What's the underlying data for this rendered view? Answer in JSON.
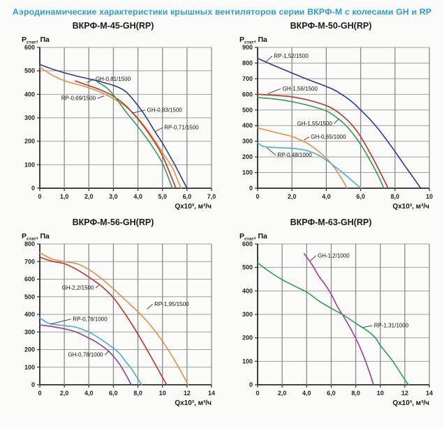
{
  "page_title": "Аэродинамические характеристики крышных вентиляторов серии ВКРФ-М с колесами GH и RP",
  "colors": {
    "title": "#2b9fd3",
    "navy": "#2e3a8c",
    "red": "#c2312a",
    "orange": "#e2913e",
    "green": "#2f9e52",
    "cyan": "#46aed2",
    "purple": "#9c3b95",
    "grid_v": "#8a8a8a",
    "grid_h": "#9e9e9e",
    "axis": "#2a2a2a",
    "tick_text": "#222222",
    "annotation_text": "#111111",
    "leader": "#333333"
  },
  "axis_labels": {
    "y_main": "Р",
    "y_sub": "стат",
    "y_rest": ", Па",
    "x": "Qx10³, м³/ч"
  },
  "chart_data": [
    {
      "type": "line",
      "title": "ВКРФ-М-45-GH(RP)",
      "xlim": [
        0,
        7
      ],
      "ylim": [
        0,
        600
      ],
      "xticks": [
        {
          "v": 0,
          "label": "0"
        },
        {
          "v": 1,
          "label": "1,0"
        },
        {
          "v": 2,
          "label": "2,0"
        },
        {
          "v": 3,
          "label": "3,0"
        },
        {
          "v": 4,
          "label": "4,0"
        },
        {
          "v": 5,
          "label": "5,0"
        },
        {
          "v": 6,
          "label": "6,0"
        },
        {
          "v": 7,
          "label": "7,0"
        }
      ],
      "yticks": [
        0,
        100,
        200,
        300,
        400,
        500,
        600
      ],
      "series": [
        {
          "name": "RP-0,71/1500",
          "color": "navy",
          "points": [
            [
              0,
              527
            ],
            [
              0.5,
              508
            ],
            [
              1,
              492
            ],
            [
              1.5,
              478
            ],
            [
              2,
              466
            ],
            [
              2.5,
              453
            ],
            [
              3,
              438
            ],
            [
              3.5,
              412
            ],
            [
              4,
              352
            ],
            [
              4.35,
              300
            ],
            [
              4.7,
              240
            ],
            [
              5,
              192
            ],
            [
              5.5,
              100
            ],
            [
              6,
              0
            ]
          ]
        },
        {
          "name": "RP-0,69/1500",
          "color": "orange",
          "points": [
            [
              0,
              516
            ],
            [
              0.5,
              482
            ],
            [
              1,
              458
            ],
            [
              1.5,
              443
            ],
            [
              2,
              428
            ],
            [
              2.5,
              408
            ],
            [
              3,
              382
            ],
            [
              3.5,
              348
            ],
            [
              4,
              298
            ],
            [
              4.5,
              232
            ],
            [
              5,
              152
            ],
            [
              5.4,
              88
            ],
            [
              5.75,
              0
            ]
          ]
        },
        {
          "name": "GH-0,81/1500",
          "color": "red",
          "points": [
            [
              1.45,
              457
            ],
            [
              2,
              437
            ],
            [
              2.5,
              418
            ],
            [
              3,
              392
            ],
            [
              3.5,
              352
            ],
            [
              4,
              295
            ],
            [
              4.5,
              225
            ],
            [
              5,
              138
            ],
            [
              5.55,
              0
            ]
          ]
        },
        {
          "name": "GH-0,83/1500",
          "color": "green",
          "points": [
            [
              2.35,
              452
            ],
            [
              2.7,
              430
            ],
            [
              3,
              398
            ],
            [
              3.5,
              327
            ],
            [
              4,
              262
            ],
            [
              4.5,
              192
            ],
            [
              5,
              106
            ],
            [
              5.4,
              0
            ]
          ]
        }
      ],
      "annotations": [
        {
          "text": "GH-0,81/1500",
          "ax": 2.2,
          "ay": 465,
          "tx": 1.92,
          "ty": 450
        },
        {
          "text": "RP-0,69/1500",
          "ax": 2.35,
          "ay": 383,
          "tx": 2.62,
          "ty": 393
        },
        {
          "text": "GH-0,83/1500",
          "ax": 4.3,
          "ay": 333,
          "tx": 3.75,
          "ty": 320
        },
        {
          "text": "RP-0,71/1500",
          "ax": 5.0,
          "ay": 258,
          "tx": 4.72,
          "ty": 242
        }
      ]
    },
    {
      "type": "line",
      "title": "ВКРФ-М-50-GH(RP)",
      "xlim": [
        0,
        10
      ],
      "ylim": [
        0,
        900
      ],
      "xticks": [
        {
          "v": 0,
          "label": "0"
        },
        {
          "v": 2,
          "label": "2,0"
        },
        {
          "v": 4,
          "label": "4,0"
        },
        {
          "v": 6,
          "label": "6,0"
        },
        {
          "v": 8,
          "label": "8,0"
        },
        {
          "v": 10,
          "label": "10"
        }
      ],
      "yticks": [
        0,
        100,
        200,
        300,
        400,
        500,
        600,
        700,
        800,
        900
      ],
      "series": [
        {
          "name": "RP-1,52/1500",
          "color": "navy",
          "points": [
            [
              0,
              830
            ],
            [
              0.5,
              806
            ],
            [
              1,
              782
            ],
            [
              2,
              736
            ],
            [
              3,
              692
            ],
            [
              4,
              650
            ],
            [
              4.5,
              626
            ],
            [
              5,
              592
            ],
            [
              5.5,
              552
            ],
            [
              6,
              500
            ],
            [
              6.5,
              445
            ],
            [
              7,
              382
            ],
            [
              7.5,
              310
            ],
            [
              8,
              235
            ],
            [
              8.5,
              155
            ],
            [
              9,
              78
            ],
            [
              9.5,
              0
            ]
          ]
        },
        {
          "name": "GH-1,56/1500",
          "color": "red",
          "points": [
            [
              0,
              600
            ],
            [
              1,
              594
            ],
            [
              2,
              584
            ],
            [
              3,
              562
            ],
            [
              4,
              528
            ],
            [
              4.5,
              500
            ],
            [
              5,
              458
            ],
            [
              5.5,
              404
            ],
            [
              6,
              330
            ],
            [
              6.5,
              235
            ],
            [
              7,
              132
            ],
            [
              7.6,
              0
            ]
          ]
        },
        {
          "name": "GH-1,55/1500",
          "color": "green",
          "points": [
            [
              0,
              580
            ],
            [
              1,
              570
            ],
            [
              2,
              553
            ],
            [
              3,
              528
            ],
            [
              4,
              494
            ],
            [
              4.5,
              460
            ],
            [
              5,
              416
            ],
            [
              5.5,
              356
            ],
            [
              6,
              280
            ],
            [
              6.5,
              188
            ],
            [
              7,
              85
            ],
            [
              7.35,
              0
            ]
          ]
        },
        {
          "name": "GH-0,65/1000",
          "color": "orange",
          "points": [
            [
              0,
              385
            ],
            [
              0.5,
              372
            ],
            [
              1,
              358
            ],
            [
              1.5,
              345
            ],
            [
              2,
              330
            ],
            [
              2.5,
              308
            ],
            [
              3,
              280
            ],
            [
              3.5,
              240
            ],
            [
              4,
              192
            ],
            [
              4.5,
              128
            ],
            [
              5,
              42
            ],
            [
              5.2,
              0
            ]
          ]
        },
        {
          "name": "RP-0,48/1000",
          "color": "cyan",
          "points": [
            [
              0,
              290
            ],
            [
              0.3,
              268
            ],
            [
              0.7,
              262
            ],
            [
              1.5,
              258
            ],
            [
              2,
              255
            ],
            [
              2.5,
              249
            ],
            [
              3,
              236
            ],
            [
              3.5,
              214
            ],
            [
              4,
              180
            ],
            [
              4.5,
              138
            ],
            [
              5,
              95
            ],
            [
              5.5,
              48
            ],
            [
              6,
              0
            ]
          ]
        }
      ],
      "annotations": [
        {
          "text": "RP-1,52/1500",
          "ax": 0.85,
          "ay": 845,
          "tx": 0.5,
          "ty": 810
        },
        {
          "text": "GH-1,56/1500",
          "ax": 1.35,
          "ay": 636,
          "tx": 0.6,
          "ty": 604
        },
        {
          "text": "GH-1,55/1500",
          "ax": 4.45,
          "ay": 412,
          "tx": 4.7,
          "ty": 440
        },
        {
          "text": "GH-0,65/1000",
          "ax": 3.0,
          "ay": 328,
          "tx": 2.7,
          "ty": 308
        },
        {
          "text": "RP-0,48/1000",
          "ax": 1.05,
          "ay": 212,
          "tx": 0.55,
          "ty": 258
        }
      ]
    },
    {
      "type": "line",
      "title": "ВКРФ-М-56-GH(RP)",
      "xlim": [
        0,
        14
      ],
      "ylim": [
        0,
        800
      ],
      "xticks": [
        {
          "v": 0,
          "label": "0"
        },
        {
          "v": 2,
          "label": "2,0"
        },
        {
          "v": 4,
          "label": "4,0"
        },
        {
          "v": 6,
          "label": "6,0"
        },
        {
          "v": 8,
          "label": "8,0"
        },
        {
          "v": 10,
          "label": "10"
        },
        {
          "v": 12,
          "label": "12"
        },
        {
          "v": 14,
          "label": "14"
        }
      ],
      "yticks": [
        0,
        100,
        200,
        300,
        400,
        500,
        600,
        700,
        800
      ],
      "series": [
        {
          "name": "RP-1,95/1500",
          "color": "orange",
          "points": [
            [
              0,
              750
            ],
            [
              1,
              715
            ],
            [
              2,
              700
            ],
            [
              3,
              688
            ],
            [
              4,
              655
            ],
            [
              5,
              605
            ],
            [
              6,
              545
            ],
            [
              7,
              480
            ],
            [
              8,
              415
            ],
            [
              9,
              340
            ],
            [
              10,
              248
            ],
            [
              11,
              138
            ],
            [
              12.1,
              0
            ]
          ]
        },
        {
          "name": "GH-2,2/1500",
          "color": "red",
          "points": [
            [
              0,
              725
            ],
            [
              1,
              702
            ],
            [
              2,
              688
            ],
            [
              3,
              655
            ],
            [
              4,
              612
            ],
            [
              5,
              562
            ],
            [
              6,
              495
            ],
            [
              7,
              398
            ],
            [
              8,
              288
            ],
            [
              9,
              168
            ],
            [
              10,
              42
            ],
            [
              10.35,
              0
            ]
          ]
        },
        {
          "name": "RP-0,78/1000",
          "color": "cyan",
          "points": [
            [
              0,
              380
            ],
            [
              0.7,
              350
            ],
            [
              1.5,
              340
            ],
            [
              2.5,
              332
            ],
            [
              3,
              326
            ],
            [
              4,
              300
            ],
            [
              5,
              258
            ],
            [
              6,
              208
            ],
            [
              6.5,
              178
            ],
            [
              7,
              132
            ],
            [
              7.5,
              88
            ],
            [
              8.3,
              0
            ]
          ]
        },
        {
          "name": "GH-0,78/1000",
          "color": "purple",
          "points": [
            [
              0,
              340
            ],
            [
              1,
              331
            ],
            [
              2,
              318
            ],
            [
              3,
              299
            ],
            [
              4,
              265
            ],
            [
              4.5,
              247
            ],
            [
              5,
              224
            ],
            [
              5.5,
              198
            ],
            [
              6,
              162
            ],
            [
              6.5,
              118
            ],
            [
              7,
              60
            ],
            [
              7.45,
              0
            ]
          ]
        }
      ],
      "annotations": [
        {
          "text": "GH-2,2/1500",
          "ax": 4.55,
          "ay": 550,
          "tx": 4.82,
          "ty": 566
        },
        {
          "text": "RP-1,95/1500",
          "ax": 9.2,
          "ay": 458,
          "tx": 8.75,
          "ty": 430
        },
        {
          "text": "RP-0,78/1000",
          "ax": 2.55,
          "ay": 373,
          "tx": 0.85,
          "ty": 345
        },
        {
          "text": "GH-0,78/1000",
          "ax": 5.3,
          "ay": 170,
          "tx": 5.6,
          "ty": 190
        }
      ]
    },
    {
      "type": "line",
      "title": "ВКРФ-М-63-GH(RP)",
      "xlim": [
        0,
        14
      ],
      "ylim": [
        0,
        600
      ],
      "xticks": [
        {
          "v": 0,
          "label": "0"
        },
        {
          "v": 2,
          "label": "2,0"
        },
        {
          "v": 4,
          "label": "4,0"
        },
        {
          "v": 6,
          "label": "6,0"
        },
        {
          "v": 8,
          "label": "8,0"
        },
        {
          "v": 10,
          "label": "10"
        },
        {
          "v": 12,
          "label": "12"
        },
        {
          "v": 14,
          "label": "14"
        }
      ],
      "yticks": [
        0,
        100,
        200,
        300,
        400,
        500,
        600
      ],
      "series": [
        {
          "name": "GH-1,2/1000",
          "color": "purple",
          "points": [
            [
              3.8,
              558
            ],
            [
              4.2,
              530
            ],
            [
              4.6,
              498
            ],
            [
              5,
              462
            ],
            [
              5.5,
              427
            ],
            [
              6,
              386
            ],
            [
              6.5,
              334
            ],
            [
              7,
              292
            ],
            [
              7.5,
              247
            ],
            [
              8,
              198
            ],
            [
              8.5,
              140
            ],
            [
              9,
              72
            ],
            [
              9.45,
              0
            ]
          ]
        },
        {
          "name": "RP-1,31/1000",
          "color": "green",
          "points": [
            [
              0,
              520
            ],
            [
              0.5,
              500
            ],
            [
              1,
              481
            ],
            [
              2,
              448
            ],
            [
              3,
              421
            ],
            [
              4,
              395
            ],
            [
              5,
              357
            ],
            [
              6,
              326
            ],
            [
              7,
              297
            ],
            [
              8,
              262
            ],
            [
              9,
              228
            ],
            [
              9.6,
              200
            ],
            [
              10,
              168
            ],
            [
              11,
              102
            ],
            [
              12,
              22
            ],
            [
              12.3,
              0
            ]
          ]
        }
      ],
      "annotations": [
        {
          "text": "GH-1,2/1000",
          "ax": 4.75,
          "ay": 550,
          "tx": 4.3,
          "ty": 528
        },
        {
          "text": "RP-1,31/1000",
          "ax": 9.35,
          "ay": 252,
          "tx": 8.6,
          "ty": 245
        }
      ]
    }
  ]
}
